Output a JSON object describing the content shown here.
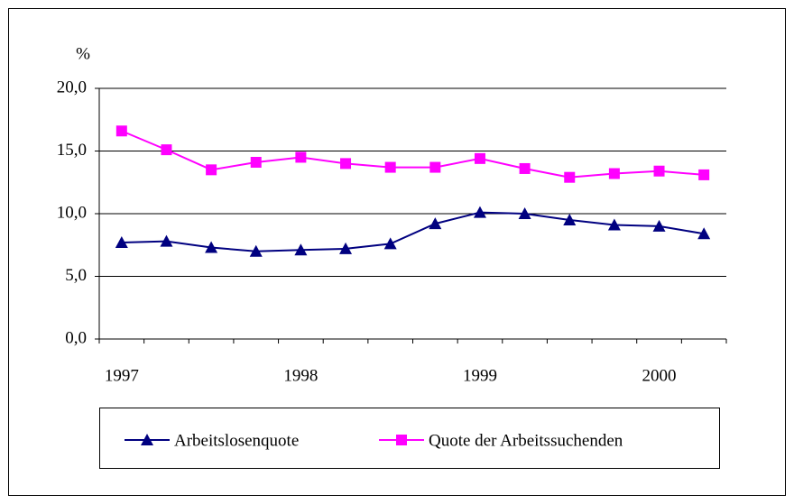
{
  "chart_data": {
    "type": "line",
    "y_label": "%",
    "categories": [
      "1997",
      null,
      null,
      null,
      "1998",
      null,
      null,
      null,
      "1999",
      null,
      null,
      null,
      "2000",
      null
    ],
    "series": [
      {
        "name": "Arbeitslosenquote",
        "color": "#000080",
        "marker": "triangle",
        "values": [
          7.7,
          7.8,
          7.3,
          7.0,
          7.1,
          7.2,
          7.6,
          9.2,
          10.1,
          10.0,
          9.5,
          9.1,
          9.0,
          8.4
        ]
      },
      {
        "name": "Quote der Arbeitssuchenden",
        "color": "#ff00ff",
        "marker": "square",
        "values": [
          16.6,
          15.1,
          13.5,
          14.1,
          14.5,
          14.0,
          13.7,
          13.7,
          14.4,
          13.6,
          12.9,
          13.2,
          13.4,
          13.1
        ]
      }
    ],
    "ylim": [
      0,
      20
    ],
    "yticks": [
      {
        "value": 0,
        "label": "0,0"
      },
      {
        "value": 5,
        "label": "5,0"
      },
      {
        "value": 10,
        "label": "10,0"
      },
      {
        "value": 15,
        "label": "15,0"
      },
      {
        "value": 20,
        "label": "20,0"
      }
    ],
    "grid": true
  }
}
